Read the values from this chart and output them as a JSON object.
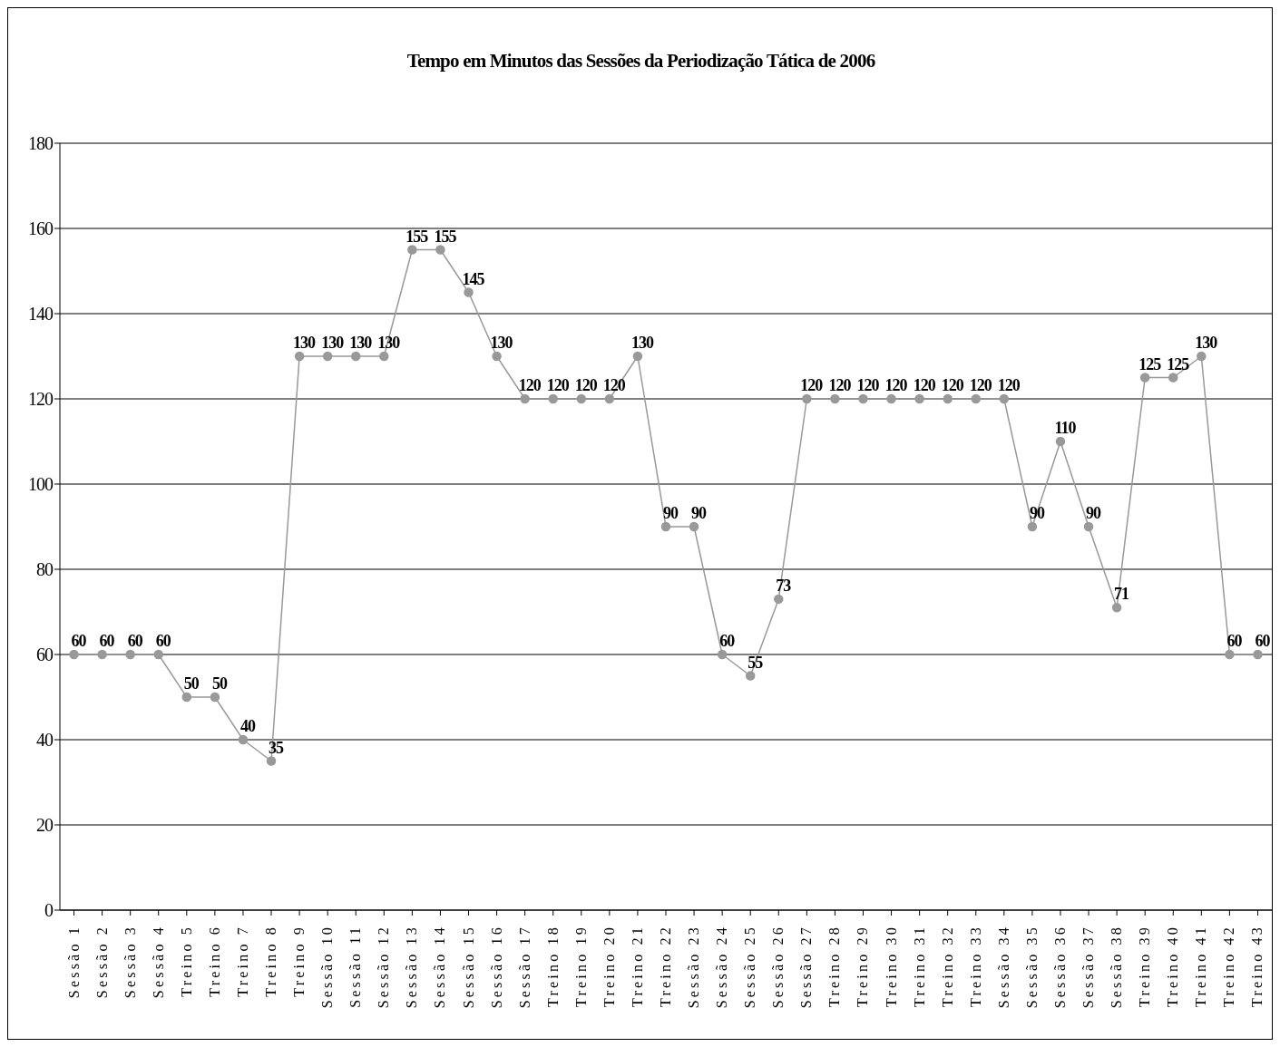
{
  "chart_data": {
    "type": "line",
    "title": "Tempo em Minutos das Sessões da Periodização Tática de 2006",
    "categories": [
      "Sessão 1",
      "Sessão 2",
      "Sessão 3",
      "Sessão 4",
      "Treino 5",
      "Treino 6",
      "Treino 7",
      "Treino 8",
      "Treino 9",
      "Sessão 10",
      "Sessão 11",
      "Sessão 12",
      "Sessão 13",
      "Sessão 14",
      "Sessão 15",
      "Sessão 16",
      "Sessão 17",
      "Treino 18",
      "Treino 19",
      "Treino 20",
      "Treino 21",
      "Treino 22",
      "Sessão 23",
      "Sessão 24",
      "Sessão 25",
      "Sessão 26",
      "Sessão 27",
      "Treino 28",
      "Treino 29",
      "Treino 30",
      "Treino 31",
      "Treino 32",
      "Treino 33",
      "Sessão 34",
      "Sessão 35",
      "Sessão 36",
      "Sessão 37",
      "Sessão 38",
      "Treino 39",
      "Treino 40",
      "Treino 41",
      "Treino 42",
      "Treino 43"
    ],
    "series": [
      {
        "color": "#999999",
        "values": [
          60,
          60,
          60,
          60,
          50,
          50,
          40,
          35,
          130,
          130,
          130,
          130,
          155,
          155,
          145,
          130,
          120,
          120,
          120,
          120,
          130,
          90,
          90,
          60,
          55,
          73,
          120,
          120,
          120,
          120,
          120,
          120,
          120,
          120,
          90,
          110,
          90,
          71,
          125,
          125,
          130,
          60,
          60
        ]
      }
    ],
    "ylim": [
      0,
      180
    ],
    "yticks": [
      0,
      20,
      40,
      60,
      80,
      100,
      120,
      140,
      160,
      180
    ],
    "grid": "y",
    "marker": "circle",
    "line_style": "solid",
    "data_labels": true
  }
}
